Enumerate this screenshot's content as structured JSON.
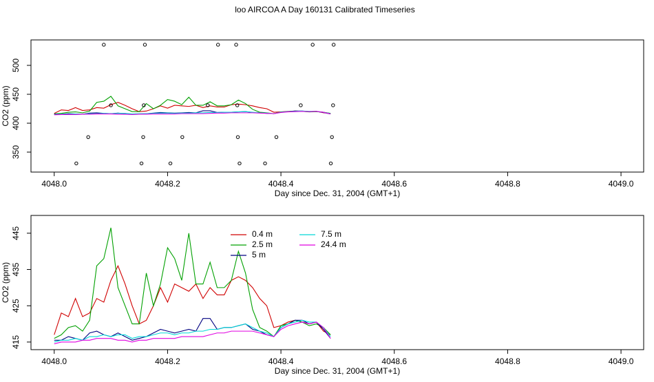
{
  "title": "loo AIRCOA A  Day 160131  Calibrated Timeseries",
  "chart_data": [
    {
      "type": "line",
      "x_label": "Day since Dec. 31, 2004 (GMT+1)",
      "y_label": "CO2 (ppm)",
      "xlim": [
        4047.959,
        4049.04
      ],
      "ylim": [
        315.5,
        544
      ],
      "xticks": [
        {
          "value": 4048,
          "label": "4048.0"
        },
        4048.2,
        4048.4,
        4048.6,
        4048.8,
        {
          "value": 4049,
          "label": "4049.0"
        }
      ],
      "yticks": [
        350,
        400,
        450,
        500
      ],
      "x": [
        4048,
        4048.0125,
        4048.025,
        4048.0375,
        4048.05,
        4048.0625,
        4048.075,
        4048.0875,
        4048.1,
        4048.1125,
        4048.125,
        4048.1375,
        4048.15,
        4048.1625,
        4048.175,
        4048.1875,
        4048.2,
        4048.2125,
        4048.225,
        4048.2375,
        4048.25,
        4048.2625,
        4048.275,
        4048.2875,
        4048.3,
        4048.3125,
        4048.325,
        4048.3375,
        4048.35,
        4048.3625,
        4048.375,
        4048.3875,
        4048.4,
        4048.4125,
        4048.425,
        4048.4375,
        4048.45,
        4048.4625,
        4048.475,
        4048.4875
      ],
      "series": [
        {
          "color": "#d00000",
          "values": [
            417,
            423,
            422,
            427,
            422,
            423,
            427,
            426,
            432,
            436,
            431,
            425,
            420,
            421,
            425,
            430,
            426,
            431,
            430,
            429,
            431,
            427,
            430,
            428,
            428,
            432,
            433,
            432,
            430,
            427,
            425,
            419,
            419.5,
            420.5,
            421,
            420.5,
            420,
            420.5,
            418,
            417
          ]
        },
        {
          "color": "#00a000",
          "values": [
            416,
            417,
            419,
            419.5,
            418,
            421,
            436,
            438,
            446.5,
            430,
            425,
            420,
            420,
            434,
            425,
            431,
            441,
            438,
            432,
            445,
            431,
            431,
            437,
            430,
            430,
            432,
            440,
            434,
            424,
            419,
            418,
            416.5,
            419.5,
            420,
            421,
            420.5,
            419.5,
            420,
            419,
            417
          ]
        },
        {
          "color": "#000080",
          "values": [
            415.5,
            415.5,
            416.5,
            416,
            415.5,
            417.5,
            418,
            417,
            416.5,
            417.5,
            416.5,
            415.5,
            416,
            416.5,
            417.5,
            418.5,
            418,
            417.5,
            418,
            418.5,
            418,
            421.5,
            421.5,
            418.5,
            419,
            419,
            419.5,
            420,
            418.5,
            418,
            417,
            416.5,
            419,
            420,
            421,
            421,
            420,
            420.5,
            418.5,
            416
          ]
        },
        {
          "color": "#00d8d8",
          "values": [
            415,
            415.5,
            415.5,
            416,
            415.5,
            416.5,
            416.5,
            417,
            416.5,
            417,
            417,
            416,
            416.5,
            416.5,
            417,
            417.5,
            417.5,
            417,
            417.5,
            417.5,
            418,
            418,
            418.5,
            418.5,
            419,
            419,
            419.5,
            420,
            419,
            418,
            417.5,
            416.5,
            419,
            420,
            420.5,
            421,
            420.5,
            420.5,
            419,
            416.5
          ]
        },
        {
          "color": "#e000e0",
          "values": [
            414.5,
            415,
            415,
            415,
            415.5,
            415.5,
            416,
            416,
            416,
            415.5,
            415.5,
            415,
            415.5,
            415.5,
            416,
            416,
            416,
            416,
            416.5,
            416.5,
            416.5,
            416.5,
            417,
            417.5,
            417.5,
            418,
            418,
            418,
            418,
            417.5,
            417,
            416.5,
            418.5,
            419.5,
            420,
            420.5,
            420,
            420.5,
            419,
            416
          ]
        },
        {
          "color": "#000000",
          "marker": "circle",
          "x": [
            4048.0875,
            4048.16,
            4048.289,
            4048.321,
            4048.456,
            4048.493,
            4048.1,
            4048.158,
            4048.271,
            4048.323,
            4048.435,
            4048.492,
            4048.06,
            4048.157,
            4048.226,
            4048.324,
            4048.392,
            4048.49,
            4048.039,
            4048.154,
            4048.205,
            4048.327,
            4048.372,
            4048.488
          ],
          "values": [
            535.7,
            535.7,
            535.7,
            535.7,
            535.7,
            535.7,
            431,
            431,
            431,
            431,
            431,
            431,
            376,
            376,
            376,
            376,
            376,
            376,
            330.5,
            330.5,
            330.5,
            330.5,
            330.5,
            330.5
          ]
        }
      ]
    },
    {
      "type": "line",
      "x_label": "Day since Dec. 31, 2004 (GMT+1)",
      "y_label": "CO2 (ppm)",
      "xlim": [
        4047.959,
        4049.04
      ],
      "ylim": [
        412.9,
        449.9
      ],
      "xticks": [
        {
          "value": 4048,
          "label": "4048.0"
        },
        4048.2,
        4048.4,
        4048.6,
        4048.8,
        {
          "value": 4049,
          "label": "4049.0"
        }
      ],
      "yticks": [
        415,
        425,
        435,
        445
      ],
      "legend": "top",
      "x": [
        4048,
        4048.0125,
        4048.025,
        4048.0375,
        4048.05,
        4048.0625,
        4048.075,
        4048.0875,
        4048.1,
        4048.1125,
        4048.125,
        4048.1375,
        4048.15,
        4048.1625,
        4048.175,
        4048.1875,
        4048.2,
        4048.2125,
        4048.225,
        4048.2375,
        4048.25,
        4048.2625,
        4048.275,
        4048.2875,
        4048.3,
        4048.3125,
        4048.325,
        4048.3375,
        4048.35,
        4048.3625,
        4048.375,
        4048.3875,
        4048.4,
        4048.4125,
        4048.425,
        4048.4375,
        4048.45,
        4048.4625,
        4048.475,
        4048.4875
      ],
      "series": [
        {
          "name": "0.4 m",
          "color": "#d00000",
          "values": [
            417,
            423,
            422,
            427,
            422,
            423,
            427,
            426,
            432,
            436,
            431,
            425,
            420,
            421,
            425,
            430,
            426,
            431,
            430,
            429,
            431,
            427,
            430,
            428,
            428,
            432,
            433,
            432,
            430,
            427,
            425,
            419,
            419.5,
            420.5,
            421,
            420.5,
            420,
            420.5,
            418,
            417
          ]
        },
        {
          "name": "2.5 m",
          "color": "#00a000",
          "values": [
            416,
            417,
            419,
            419.5,
            418,
            421,
            436,
            438,
            446.5,
            430,
            425,
            420,
            420,
            434,
            425,
            431,
            441,
            438,
            432,
            445,
            431,
            431,
            437,
            430,
            430,
            432,
            440,
            434,
            424,
            419,
            418,
            416.5,
            419.5,
            420,
            421,
            420.5,
            419.5,
            420,
            419,
            417
          ]
        },
        {
          "name": "5 m",
          "color": "#000080",
          "values": [
            415.5,
            415.5,
            416.5,
            416,
            415.5,
            417.5,
            418,
            417,
            416.5,
            417.5,
            416.5,
            415.5,
            416,
            416.5,
            417.5,
            418.5,
            418,
            417.5,
            418,
            418.5,
            418,
            421.5,
            421.5,
            418.5,
            419,
            419,
            419.5,
            420,
            418.5,
            418,
            417,
            416.5,
            419,
            420,
            421,
            421,
            420,
            420.5,
            418.5,
            416
          ]
        },
        {
          "name": "7.5 m",
          "color": "#00d8d8",
          "values": [
            415,
            415.5,
            415.5,
            416,
            415.5,
            416.5,
            416.5,
            417,
            416.5,
            417,
            417,
            416,
            416.5,
            416.5,
            417,
            417.5,
            417.5,
            417,
            417.5,
            417.5,
            418,
            418,
            418.5,
            418.5,
            419,
            419,
            419.5,
            420,
            419,
            418,
            417.5,
            416.5,
            419,
            420,
            420.5,
            421,
            420.5,
            420.5,
            419,
            416.5
          ]
        },
        {
          "name": "24.4 m",
          "color": "#e000e0",
          "values": [
            414.5,
            415,
            415,
            415,
            415.5,
            415.5,
            416,
            416,
            416,
            415.5,
            415.5,
            415,
            415.5,
            415.5,
            416,
            416,
            416,
            416,
            416.5,
            416.5,
            416.5,
            416.5,
            417,
            417.5,
            417.5,
            418,
            418,
            418,
            418,
            417.5,
            417,
            416.5,
            418.5,
            419.5,
            420,
            420.5,
            420,
            420.5,
            419,
            416
          ]
        }
      ]
    }
  ]
}
